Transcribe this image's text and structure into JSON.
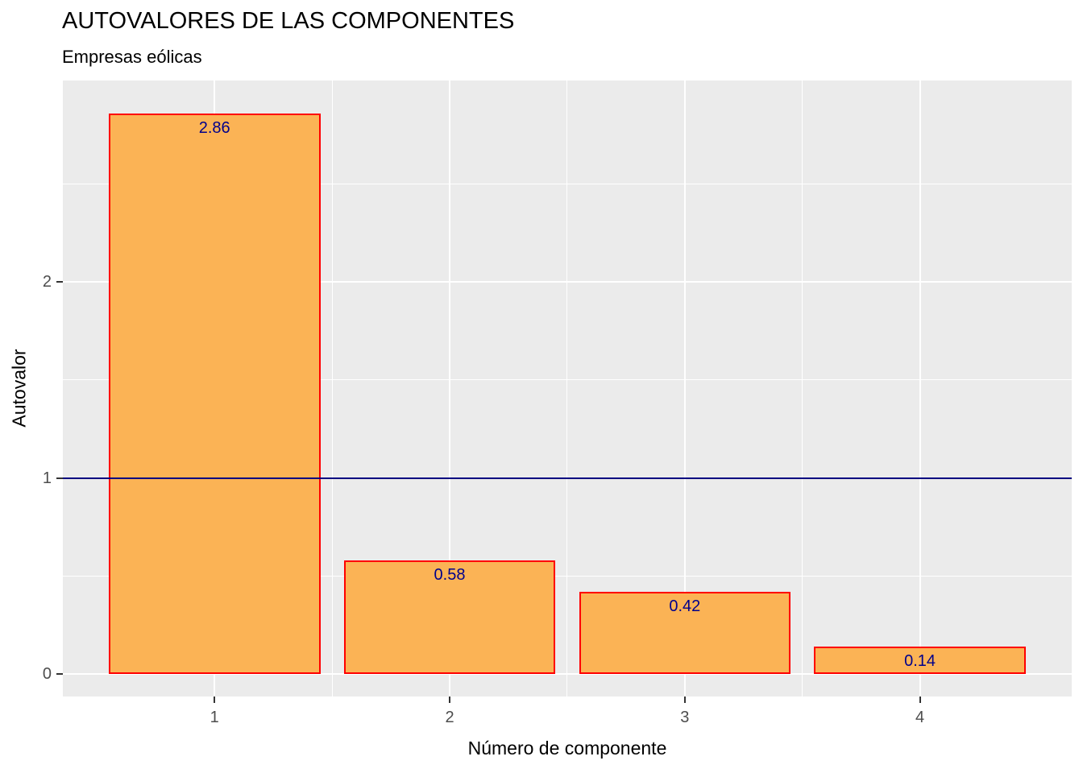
{
  "chart_data": {
    "type": "bar",
    "title": "AUTOVALORES DE LAS COMPONENTES",
    "subtitle": "Empresas eólicas",
    "xlabel": "Número de componente",
    "ylabel": "Autovalor",
    "categories": [
      "1",
      "2",
      "3",
      "4"
    ],
    "values": [
      2.86,
      0.58,
      0.42,
      0.14
    ],
    "bar_labels": [
      "2.86",
      "0.58",
      "0.42",
      "0.14"
    ],
    "y_ticks": [
      "0",
      "1",
      "2"
    ],
    "y_tick_values": [
      0,
      1,
      2
    ],
    "y_minor_values": [
      0.5,
      1.5,
      2.5
    ],
    "x_minor_values": [
      1.5,
      2.5,
      3.5
    ],
    "ylim": [
      -0.12,
      3.02
    ],
    "xlim": [
      0.36,
      4.64
    ],
    "grid": true,
    "legend_position": "none",
    "reference_line": {
      "y": 1,
      "color": "#000080"
    },
    "colors": {
      "bar_fill": "#FBB355",
      "bar_border": "#FF0000",
      "bar_label": "#00008B",
      "panel_bg": "#EBEBEB",
      "grid": "#FFFFFF",
      "tick_label": "#4D4D4D",
      "axis_title": "#000000",
      "tick_mark": "#333333"
    }
  }
}
